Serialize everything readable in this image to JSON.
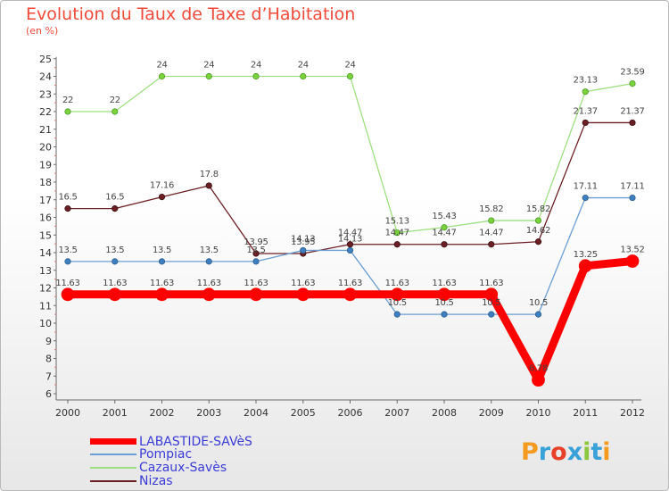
{
  "title": "Evolution du Taux de Taxe d’Habitation",
  "unit_label": "(en %)",
  "logo": {
    "text": "Proxiti",
    "colors": [
      "#f39a1f",
      "#3aa0d8",
      "#e8412a",
      "#3aa0d8",
      "#8cc63f",
      "#3aa0d8",
      "#f39a1f"
    ]
  },
  "chart_data": {
    "type": "line",
    "title": "Evolution du Taux de Taxe d’Habitation",
    "ylabel": "(en %)",
    "xlabel": "",
    "ylim": [
      6,
      25
    ],
    "x": [
      "2000",
      "2001",
      "2002",
      "2003",
      "2004",
      "2005",
      "2006",
      "2007",
      "2008",
      "2009",
      "2010",
      "2011",
      "2012"
    ],
    "yticks": [
      "6",
      "7",
      "8",
      "9",
      "10",
      "11",
      "12",
      "13",
      "14",
      "15",
      "16",
      "17",
      "18",
      "19",
      "20",
      "21",
      "22",
      "23",
      "24",
      "25"
    ],
    "grid": false,
    "legend": "bottom-left",
    "series": [
      {
        "name": "LABASTIDE-SAVèS",
        "color": "#ff0000",
        "values": [
          11.63,
          11.63,
          11.63,
          11.63,
          11.63,
          11.63,
          11.63,
          11.63,
          11.63,
          11.63,
          6.78,
          13.25,
          13.52
        ],
        "labels": [
          "11.63",
          "11.63",
          "11.63",
          "11.63",
          "11.63",
          "11.63",
          "11.63",
          "11.63",
          "11.63",
          "11.63",
          "6.78",
          "13.25",
          "13.52"
        ]
      },
      {
        "name": "Pompiac",
        "color": "#6a9ed1",
        "values": [
          13.5,
          13.5,
          13.5,
          13.5,
          13.5,
          14.13,
          14.13,
          10.5,
          10.5,
          10.5,
          10.5,
          17.11,
          17.11
        ],
        "labels": [
          "13.5",
          "13.5",
          "13.5",
          "13.5",
          "13.5",
          "14.13",
          "14.13",
          "10.5",
          "10.5",
          "10.5",
          "10.5",
          "17.11",
          "17.11"
        ]
      },
      {
        "name": "Cazaux-Savès",
        "color": "#9ee081",
        "values": [
          22,
          22,
          24,
          24,
          24,
          24,
          24,
          15.13,
          15.43,
          15.82,
          15.82,
          23.13,
          23.59
        ],
        "labels": [
          "22",
          "22",
          "24",
          "24",
          "24",
          "24",
          "24",
          "15.13",
          "15.43",
          "15.82",
          "15.82",
          "23.13",
          "23.59"
        ]
      },
      {
        "name": "Nizas",
        "color": "#6b1f25",
        "values": [
          16.5,
          16.5,
          17.16,
          17.8,
          13.95,
          13.95,
          14.47,
          14.47,
          14.47,
          14.47,
          14.62,
          21.37,
          21.37
        ],
        "labels": [
          "16.5",
          "16.5",
          "17.16",
          "17.8",
          "13.95",
          "13.95",
          "14.47",
          "14.47",
          "14.47",
          "14.47",
          "14.62",
          "21.37",
          "21.37"
        ]
      }
    ]
  }
}
